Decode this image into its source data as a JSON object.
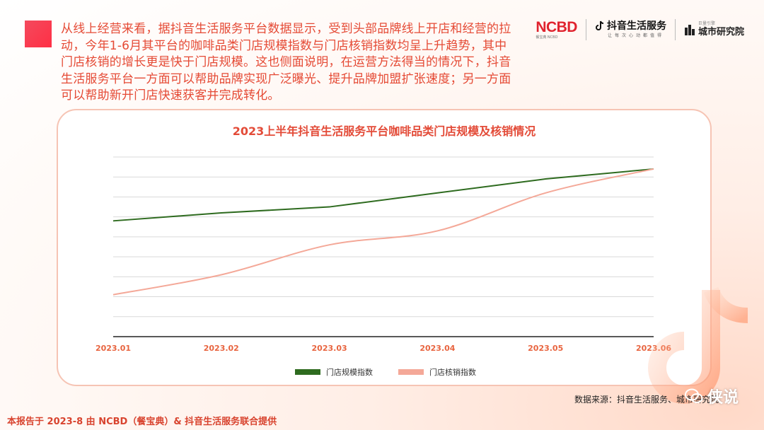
{
  "intro_text": "从线上经营来看，据抖音生活服务平台数据显示，受到头部品牌线上开店和经营的拉动，今年1-6月其平台的咖啡品类门店规模指数与门店核销指数均呈上升趋势，其中门店核销的增长更是快于门店规模。这也侧面说明，在运营方法得当的情况下，抖音生活服务平台一方面可以帮助品牌实现广泛曝光、提升品牌加盟扩张速度；另一方面可以帮助新开门店快速获客并完成转化。",
  "logos": {
    "ncbd": "NCBD",
    "ncbd_sub": "餐宝典 NCBD",
    "douyin": "抖音生活服务",
    "douyin_sub": "让每次心动都值得",
    "city_tiny": "巨量引擎",
    "city": "城市研究院"
  },
  "chart_data": {
    "type": "line",
    "title": "2023上半年抖音生活服务平台咖啡品类门店规模及核销情况",
    "categories": [
      "2023.01",
      "2023.02",
      "2023.03",
      "2023.04",
      "2023.05",
      "2023.06"
    ],
    "series": [
      {
        "name": "门店规模指数",
        "color": "#2e6b1f",
        "values": [
          48,
          52,
          55,
          62,
          69,
          74
        ],
        "smooth": false
      },
      {
        "name": "门店核销指数",
        "color": "#f4a898",
        "values": [
          11,
          21,
          36,
          43,
          62,
          74
        ],
        "smooth": true
      }
    ],
    "ylim": [
      -10,
      80
    ],
    "grid": true,
    "legend": "bottom"
  },
  "source": "数据来源：抖音生活服务、城市研究院",
  "footer": "本报告于 2023-8 由 NCBD（餐宝典）& 抖音生活服务联合提供",
  "watermark": "侠说",
  "colors": {
    "accent": "#e54a35",
    "card_border": "#f6c4b4"
  }
}
